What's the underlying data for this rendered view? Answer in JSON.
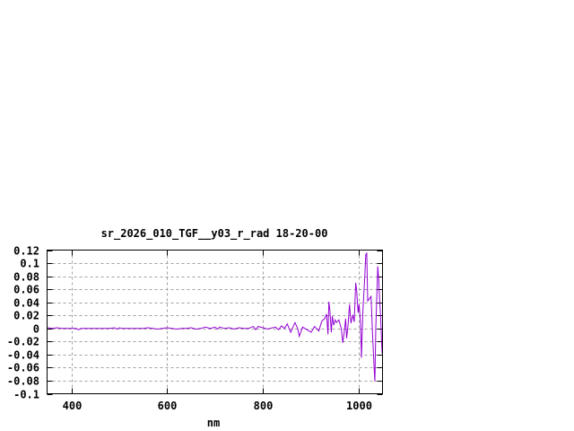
{
  "chart_data": {
    "type": "line",
    "title": "sr_2026_010_TGF__y03_r_rad 18-20-00",
    "xlabel": "nm",
    "ylabel": "",
    "xlim": [
      349,
      1050
    ],
    "ylim": [
      -0.1,
      0.12
    ],
    "grid": true,
    "x_ticks": [
      400,
      600,
      800,
      1000
    ],
    "x_tick_labels": [
      "400",
      "600",
      "800",
      "1000"
    ],
    "y_ticks": [
      0.12,
      0.1,
      0.08,
      0.06,
      0.04,
      0.02,
      0,
      -0.02,
      -0.04,
      -0.06,
      -0.08,
      -0.1
    ],
    "y_tick_labels": [
      "0.12",
      "0.1",
      "0.08",
      "0.06",
      "0.04",
      "0.02",
      "0",
      "-0.02",
      "-0.04",
      "-0.06",
      "-0.08",
      "-0.1"
    ],
    "line_color": "#9400d3",
    "series": [
      {
        "x": [
          350,
          360,
          370,
          380,
          390,
          400,
          410,
          415,
          420,
          430,
          440,
          450,
          460,
          470,
          480,
          490,
          495,
          500,
          505,
          510,
          520,
          530,
          540,
          550,
          560,
          570,
          580,
          590,
          600,
          610,
          620,
          630,
          640,
          650,
          660,
          670,
          680,
          690,
          700,
          705,
          710,
          720,
          730,
          740,
          750,
          760,
          770,
          780,
          785,
          790,
          800,
          810,
          814,
          826,
          833,
          839,
          845,
          851,
          858,
          867,
          873,
          876,
          883,
          892,
          901,
          908,
          917,
          923,
          929,
          933,
          936,
          938,
          940,
          943,
          945,
          948,
          951,
          954,
          959,
          964,
          967,
          970,
          973,
          975,
          978,
          981,
          984,
          988,
          991,
          994,
          996,
          999,
          1001,
          1004,
          1006,
          1009,
          1013,
          1015,
          1017,
          1019,
          1026,
          1029,
          1032,
          1034,
          1036,
          1040,
          1042,
          1044,
          1046,
          1049
        ],
        "y": [
          0.001,
          0.0,
          0.001,
          0.0,
          0.0,
          0.0,
          0.0,
          -0.002,
          0.0,
          0.0,
          0.0,
          0.0,
          0.0,
          0.0,
          0.0,
          0.001,
          -0.001,
          0.001,
          0.0,
          0.0,
          0.0,
          0.0,
          0.0,
          0.0,
          0.001,
          0.0,
          -0.001,
          0.0,
          0.001,
          0.0,
          -0.001,
          0.0,
          0.0,
          0.001,
          -0.001,
          0.0,
          0.002,
          0.0,
          0.002,
          -0.001,
          0.002,
          0.0,
          0.001,
          -0.001,
          0.001,
          0.0,
          0.0,
          0.003,
          -0.002,
          0.003,
          0.001,
          -0.001,
          0.0,
          0.002,
          -0.002,
          0.004,
          0.0,
          0.007,
          -0.006,
          0.009,
          -0.001,
          -0.012,
          0.002,
          -0.002,
          -0.006,
          0.003,
          -0.004,
          0.011,
          0.015,
          0.022,
          -0.009,
          0.041,
          0.028,
          -0.006,
          0.019,
          0.005,
          0.013,
          0.009,
          0.013,
          -0.001,
          -0.022,
          -0.006,
          0.015,
          -0.015,
          0.005,
          0.037,
          0.008,
          0.021,
          0.01,
          0.07,
          0.058,
          0.024,
          0.037,
          0.008,
          -0.045,
          0.026,
          0.081,
          0.113,
          0.115,
          0.042,
          0.049,
          -0.006,
          -0.054,
          -0.081,
          0.001,
          0.095,
          0.076,
          0.044,
          0.017,
          -0.038
        ]
      }
    ]
  }
}
